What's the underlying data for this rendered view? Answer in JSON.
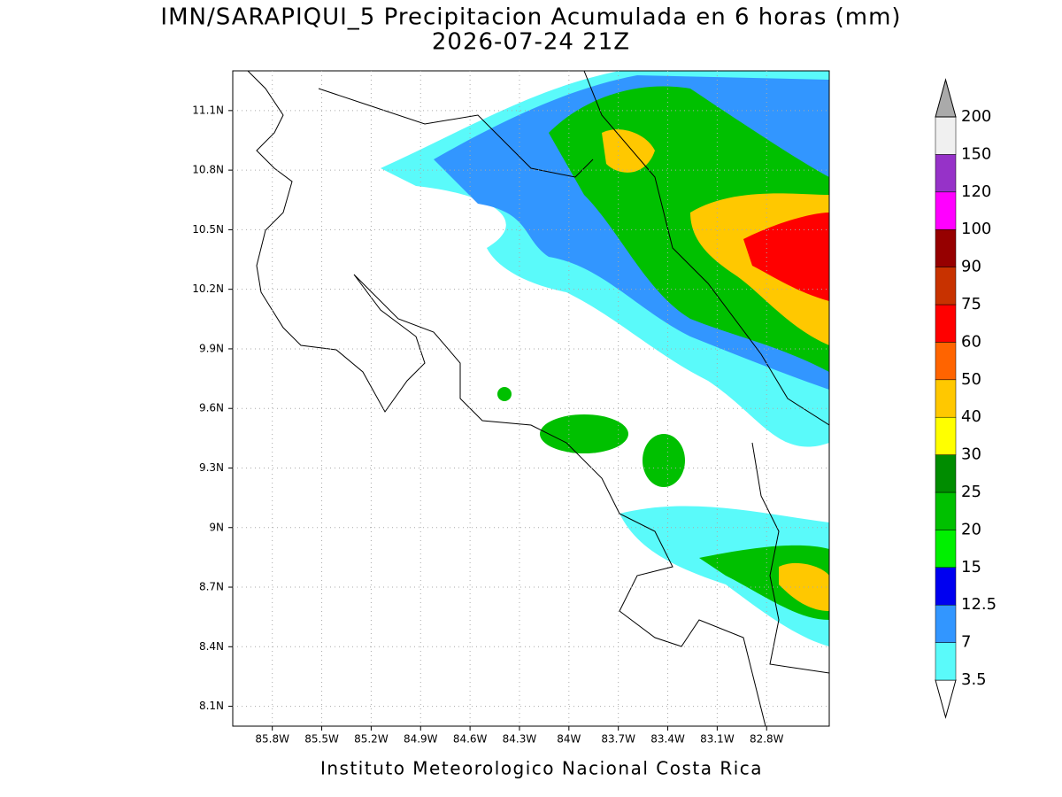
{
  "title": "IMN/SARAPIQUI_5 Precipitacion Acumulada en 6 horas (mm)",
  "subtitle": "2026-07-24 21Z",
  "footer": "Instituto Meteorologico Nacional Costa Rica",
  "map": {
    "xlim": [
      -86.04,
      -82.42
    ],
    "ylim": [
      8.0,
      11.3
    ],
    "xticks": [
      {
        "value": -85.8,
        "label": "85.8W"
      },
      {
        "value": -85.5,
        "label": "85.5W"
      },
      {
        "value": -85.2,
        "label": "85.2W"
      },
      {
        "value": -84.9,
        "label": "84.9W"
      },
      {
        "value": -84.6,
        "label": "84.6W"
      },
      {
        "value": -84.3,
        "label": "84.3W"
      },
      {
        "value": -84.0,
        "label": "84W"
      },
      {
        "value": -83.7,
        "label": "83.7W"
      },
      {
        "value": -83.4,
        "label": "83.4W"
      },
      {
        "value": -83.1,
        "label": "83.1W"
      },
      {
        "value": -82.8,
        "label": "82.8W"
      }
    ],
    "yticks": [
      {
        "value": 8.1,
        "label": "8.1N"
      },
      {
        "value": 8.4,
        "label": "8.4N"
      },
      {
        "value": 8.7,
        "label": "8.7N"
      },
      {
        "value": 9.0,
        "label": "9N"
      },
      {
        "value": 9.3,
        "label": "9.3N"
      },
      {
        "value": 9.6,
        "label": "9.6N"
      },
      {
        "value": 9.9,
        "label": "9.9N"
      },
      {
        "value": 10.2,
        "label": "10.2N"
      },
      {
        "value": 10.5,
        "label": "10.5N"
      },
      {
        "value": 10.8,
        "label": "10.8N"
      },
      {
        "value": 11.1,
        "label": "11.1N"
      }
    ],
    "grid": true
  },
  "colorbar": {
    "levels": [
      3.5,
      7,
      12.5,
      15,
      20,
      25,
      30,
      40,
      50,
      60,
      75,
      90,
      100,
      120,
      150,
      200
    ],
    "colors": [
      "#ffffff",
      "#5afafa",
      "#3296ff",
      "#0000f0",
      "#00f000",
      "#00c000",
      "#008c00",
      "#ffff00",
      "#ffc800",
      "#ff6400",
      "#ff0000",
      "#c83200",
      "#960000",
      "#ff00ff",
      "#9632c8",
      "#f0f0f0",
      "#aaaaaa"
    ]
  }
}
